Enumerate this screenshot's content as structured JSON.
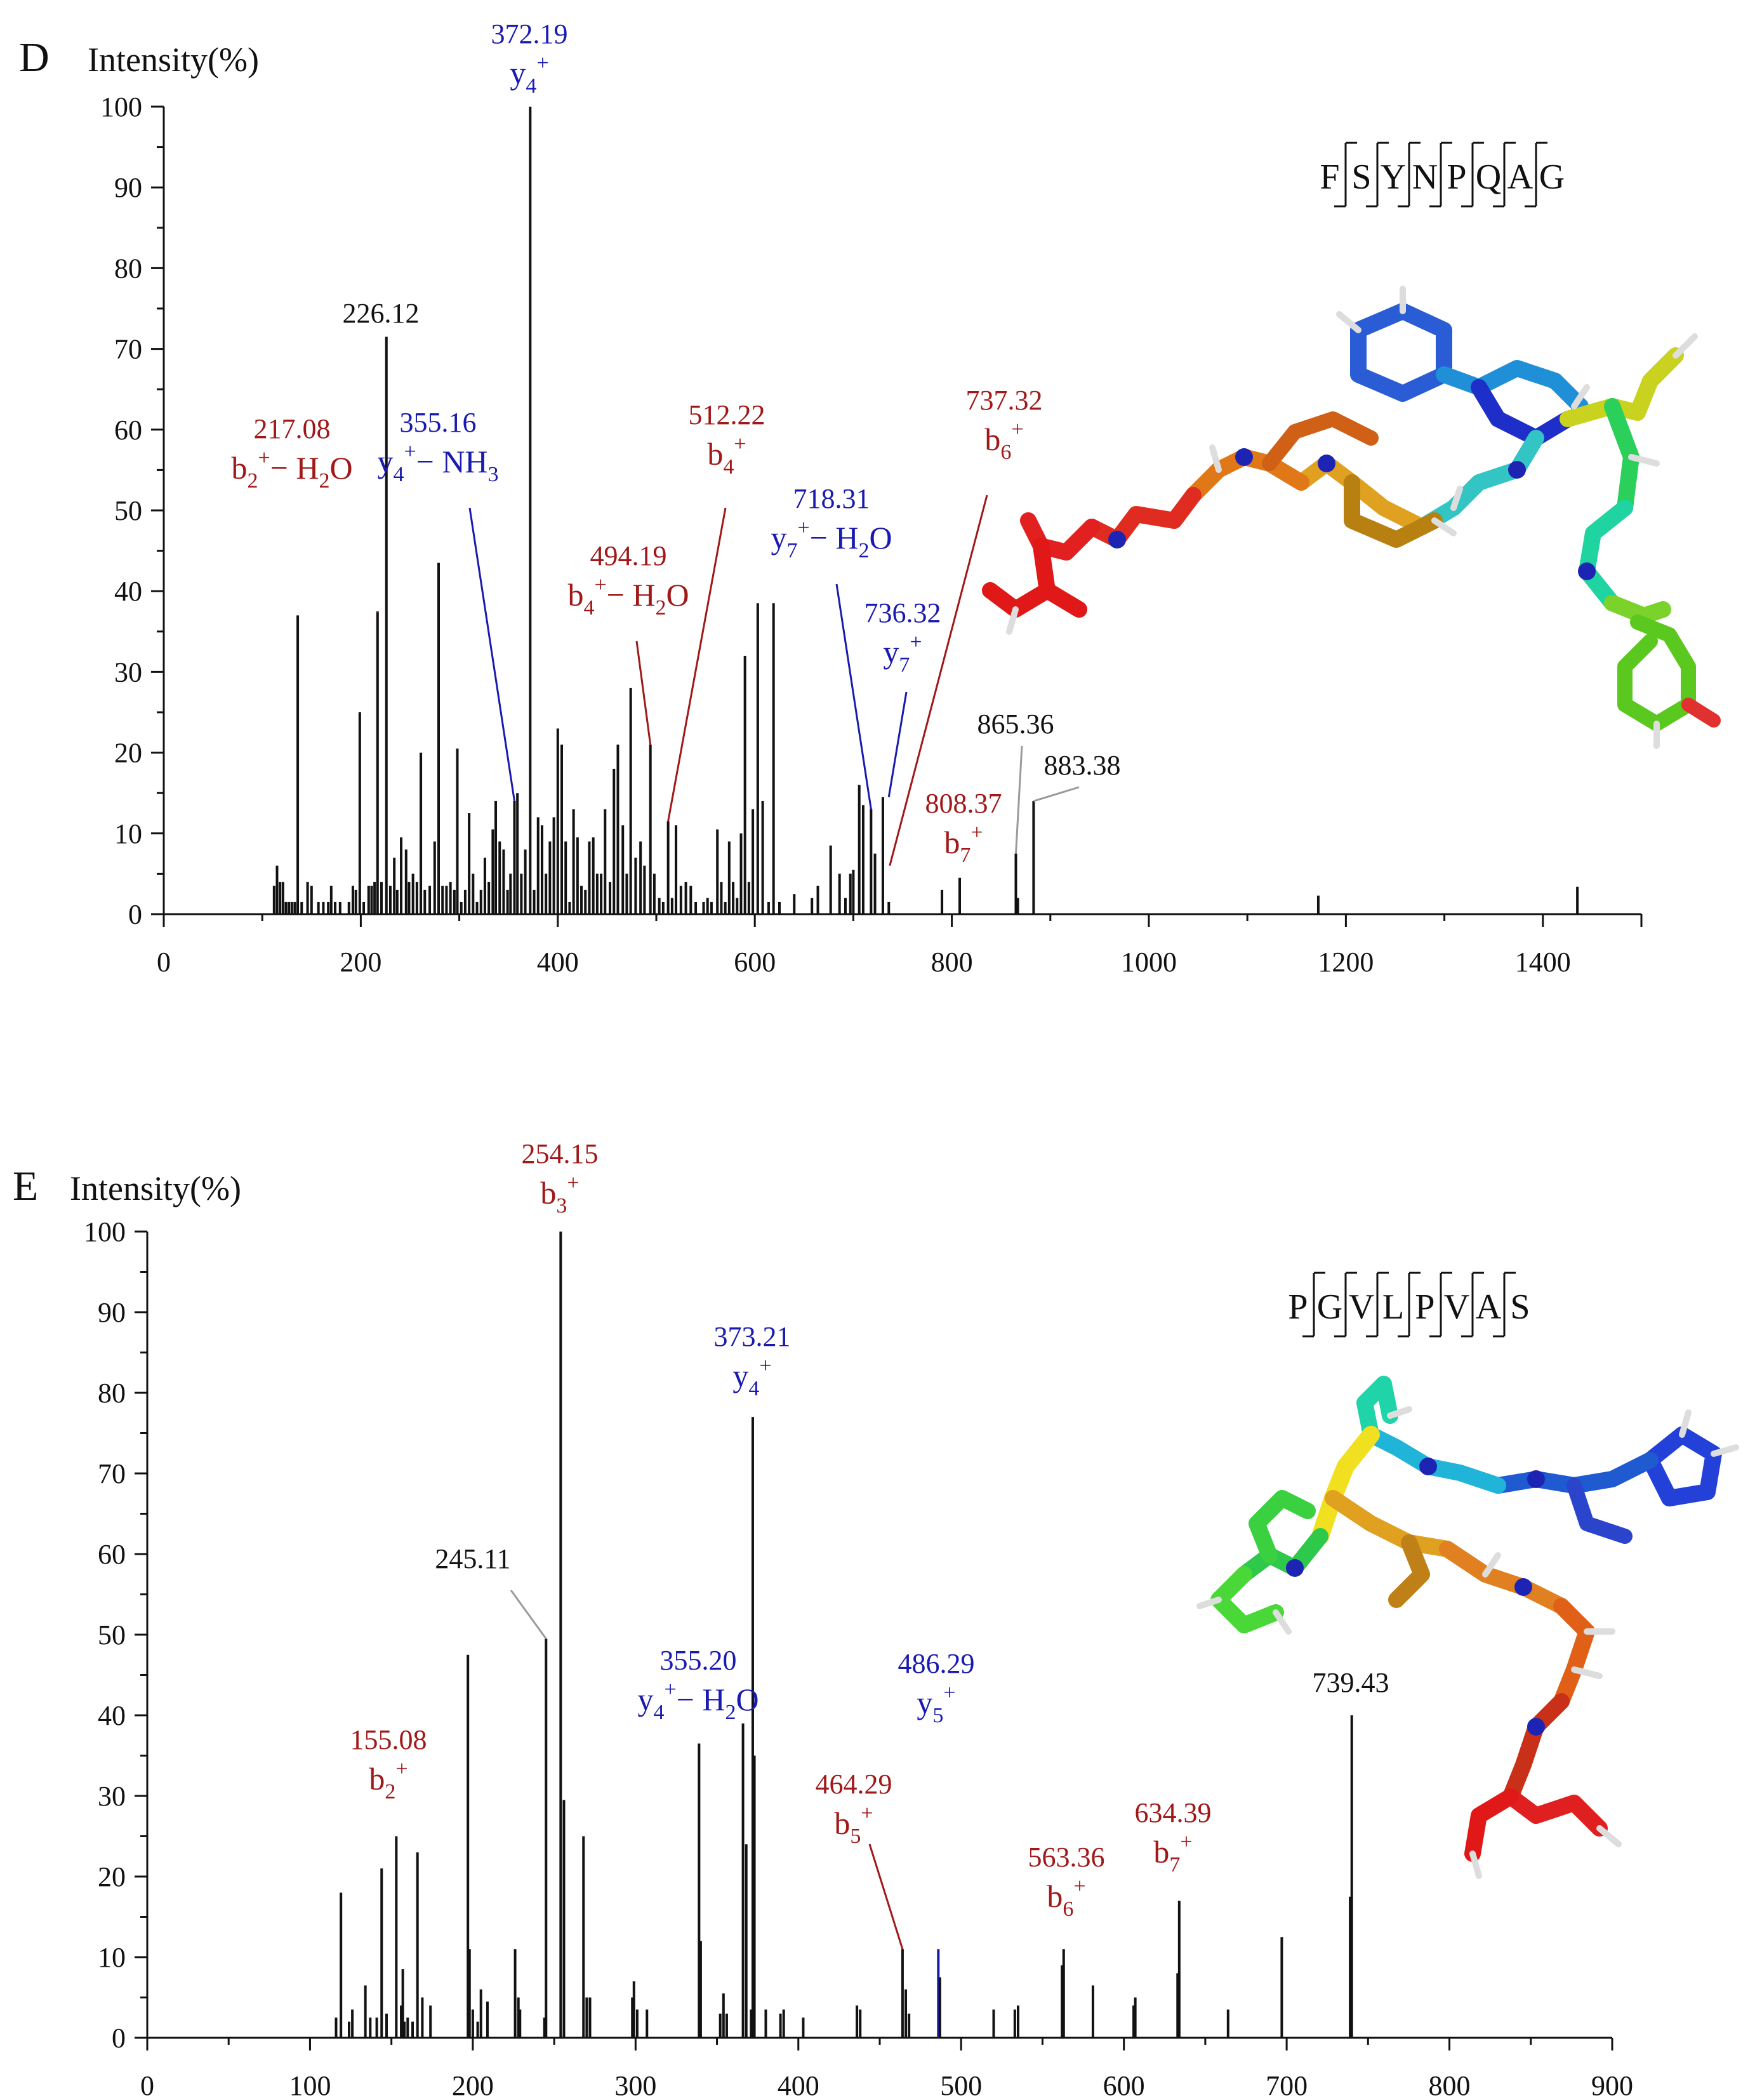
{
  "colors": {
    "black": "#111111",
    "b_ion": "#a01818",
    "y_ion": "#1a1ab0",
    "other": "#111111",
    "leader_grey": "#9a9a9a"
  },
  "chart_data": [
    {
      "type": "bar",
      "panel": "D",
      "ylabel": "Intensity(%)",
      "xlim": [
        0,
        1500
      ],
      "ylim": [
        0,
        100
      ],
      "xticks": [
        "0",
        "200",
        "400",
        "600",
        "800",
        "1000",
        "1200",
        "1400"
      ],
      "yticks": [
        "0",
        "10",
        "20",
        "30",
        "40",
        "50",
        "60",
        "70",
        "80",
        "90",
        "100"
      ],
      "sequence": [
        "F",
        "S",
        "Y",
        "N",
        "P",
        "Q",
        "A",
        "G"
      ],
      "peaks": [
        [
          112,
          3.5
        ],
        [
          115,
          6
        ],
        [
          118,
          4
        ],
        [
          121,
          4
        ],
        [
          124,
          1.5
        ],
        [
          127,
          1.5
        ],
        [
          130,
          1.5
        ],
        [
          133,
          1.5
        ],
        [
          136,
          37
        ],
        [
          140,
          1.5
        ],
        [
          146,
          4
        ],
        [
          150,
          3.5
        ],
        [
          157,
          1.5
        ],
        [
          162,
          1.5
        ],
        [
          167,
          1.5
        ],
        [
          170,
          3.5
        ],
        [
          174,
          1.5
        ],
        [
          179,
          1.5
        ],
        [
          188,
          1.5
        ],
        [
          192,
          3.5
        ],
        [
          195,
          3
        ],
        [
          199,
          25
        ],
        [
          203,
          1.5
        ],
        [
          208,
          3.5
        ],
        [
          211,
          3.5
        ],
        [
          214,
          4
        ],
        [
          217,
          37.5
        ],
        [
          221,
          4
        ],
        [
          226,
          71.5
        ],
        [
          230,
          3.5
        ],
        [
          234,
          7
        ],
        [
          237,
          3
        ],
        [
          241,
          9.5
        ],
        [
          246,
          8
        ],
        [
          249,
          4
        ],
        [
          253,
          5
        ],
        [
          257,
          4
        ],
        [
          261,
          20
        ],
        [
          265,
          3
        ],
        [
          270,
          3.5
        ],
        [
          275,
          9
        ],
        [
          279,
          43.5
        ],
        [
          283,
          3.5
        ],
        [
          287,
          3.5
        ],
        [
          291,
          4
        ],
        [
          295,
          3
        ],
        [
          298,
          20.5
        ],
        [
          302,
          1.5
        ],
        [
          306,
          3
        ],
        [
          310,
          12.5
        ],
        [
          314,
          5
        ],
        [
          318,
          1.5
        ],
        [
          322,
          3
        ],
        [
          326,
          7
        ],
        [
          330,
          4
        ],
        [
          334,
          10.5
        ],
        [
          337,
          14
        ],
        [
          341,
          9
        ],
        [
          345,
          8
        ],
        [
          349,
          3
        ],
        [
          352,
          5
        ],
        [
          356,
          14
        ],
        [
          359,
          15
        ],
        [
          363,
          5
        ],
        [
          367,
          8
        ],
        [
          372,
          100
        ],
        [
          376,
          3
        ],
        [
          380,
          12
        ],
        [
          384,
          11
        ],
        [
          388,
          5
        ],
        [
          392,
          9
        ],
        [
          396,
          12
        ],
        [
          400,
          23
        ],
        [
          404,
          21
        ],
        [
          408,
          9
        ],
        [
          412,
          1.5
        ],
        [
          416,
          13
        ],
        [
          420,
          9.5
        ],
        [
          424,
          3.5
        ],
        [
          428,
          3
        ],
        [
          432,
          9
        ],
        [
          436,
          9.5
        ],
        [
          440,
          5
        ],
        [
          444,
          5
        ],
        [
          448,
          13
        ],
        [
          453,
          4
        ],
        [
          457,
          18
        ],
        [
          461,
          21
        ],
        [
          466,
          11
        ],
        [
          470,
          5
        ],
        [
          474,
          28
        ],
        [
          479,
          7
        ],
        [
          484,
          9
        ],
        [
          488,
          6
        ],
        [
          494,
          21
        ],
        [
          498,
          5
        ],
        [
          503,
          2
        ],
        [
          507,
          1.5
        ],
        [
          512,
          11.5
        ],
        [
          516,
          2
        ],
        [
          520,
          11
        ],
        [
          525,
          3.5
        ],
        [
          530,
          4
        ],
        [
          535,
          3.5
        ],
        [
          540,
          1.5
        ],
        [
          548,
          1.5
        ],
        [
          552,
          2
        ],
        [
          556,
          1.5
        ],
        [
          562,
          10.5
        ],
        [
          566,
          4
        ],
        [
          570,
          1.5
        ],
        [
          574,
          9
        ],
        [
          578,
          4
        ],
        [
          582,
          2
        ],
        [
          586,
          10
        ],
        [
          590,
          32
        ],
        [
          594,
          4
        ],
        [
          598,
          13
        ],
        [
          603,
          38.5
        ],
        [
          608,
          14
        ],
        [
          614,
          1.5
        ],
        [
          619,
          38.5
        ],
        [
          625,
          1.5
        ],
        [
          640,
          2.5
        ],
        [
          658,
          2
        ],
        [
          664,
          3.5
        ],
        [
          677,
          8.5
        ],
        [
          686,
          5
        ],
        [
          692,
          2
        ],
        [
          697,
          5
        ],
        [
          700,
          5.5
        ],
        [
          706,
          16
        ],
        [
          710,
          13.5
        ],
        [
          718,
          13
        ],
        [
          722,
          7.5
        ],
        [
          730,
          14.5
        ],
        [
          736,
          1.5
        ],
        [
          790,
          3
        ],
        [
          808,
          4.5
        ],
        [
          865,
          7.5
        ],
        [
          867,
          2
        ],
        [
          883,
          14
        ],
        [
          1172,
          2.3
        ],
        [
          1435,
          3.4
        ]
      ],
      "annotations": [
        {
          "mz": 217,
          "y": 37.5,
          "num": "217.08",
          "ion": "b",
          "sub": "2",
          "sup": "+",
          "loss": "− H",
          "loss_sub": "2",
          "loss_tail": "O",
          "kind": "b"
        },
        {
          "mz": 226,
          "y": 71.5,
          "num": "226.12",
          "kind": "other"
        },
        {
          "mz": 356,
          "y": 14,
          "num": "355.16",
          "ion": "y",
          "sub": "4",
          "sup": "+",
          "loss": "− NH",
          "loss_sub": "3",
          "loss_tail": "",
          "kind": "y"
        },
        {
          "mz": 372,
          "y": 100,
          "num": "372.19",
          "ion": "y",
          "sub": "4",
          "sup": "+",
          "kind": "y"
        },
        {
          "mz": 494,
          "y": 21,
          "num": "494.19",
          "ion": "b",
          "sub": "4",
          "sup": "+",
          "loss": "− H",
          "loss_sub": "2",
          "loss_tail": "O",
          "kind": "b"
        },
        {
          "mz": 512,
          "y": 11.5,
          "num": "512.22",
          "ion": "b",
          "sub": "4",
          "sup": "+",
          "kind": "b"
        },
        {
          "mz": 718,
          "y": 13,
          "num": "718.31",
          "ion": "y",
          "sub": "7",
          "sup": "+",
          "loss": "− H",
          "loss_sub": "2",
          "loss_tail": "O",
          "kind": "y"
        },
        {
          "mz": 736,
          "y": 14.5,
          "num": "736.32",
          "ion": "y",
          "sub": "7",
          "sup": "+",
          "kind": "y"
        },
        {
          "mz": 737,
          "y": 6,
          "num": "737.32",
          "ion": "b",
          "sub": "6",
          "sup": "+",
          "kind": "b"
        },
        {
          "mz": 808,
          "y": 4.5,
          "num": "808.37",
          "ion": "b",
          "sub": "7",
          "sup": "+",
          "kind": "b"
        },
        {
          "mz": 865,
          "y": 7.5,
          "num": "865.36",
          "kind": "other"
        },
        {
          "mz": 883,
          "y": 14,
          "num": "883.38",
          "kind": "other"
        }
      ]
    },
    {
      "type": "bar",
      "panel": "E",
      "ylabel": "Intensity(%)",
      "xlim": [
        0,
        900
      ],
      "ylim": [
        0,
        100
      ],
      "xticks": [
        "0",
        "100",
        "200",
        "300",
        "400",
        "500",
        "600",
        "700",
        "800",
        "900"
      ],
      "yticks": [
        "0",
        "10",
        "20",
        "30",
        "40",
        "50",
        "60",
        "70",
        "80",
        "90",
        "100"
      ],
      "sequence": [
        "P",
        "G",
        "V",
        "L",
        "P",
        "V",
        "A",
        "S"
      ],
      "peaks": [
        [
          116,
          2.5
        ],
        [
          119,
          18
        ],
        [
          124,
          2
        ],
        [
          126,
          3.5
        ],
        [
          134,
          6.5
        ],
        [
          137,
          2.5
        ],
        [
          141,
          2.5
        ],
        [
          144,
          21
        ],
        [
          147,
          3
        ],
        [
          153,
          25
        ],
        [
          156,
          4
        ],
        [
          157,
          8.5
        ],
        [
          158,
          2
        ],
        [
          160,
          2.5
        ],
        [
          163,
          2
        ],
        [
          166,
          23
        ],
        [
          169,
          5
        ],
        [
          174,
          4
        ],
        [
          197,
          47.5
        ],
        [
          198,
          11
        ],
        [
          200,
          3.5
        ],
        [
          203,
          2
        ],
        [
          205,
          6
        ],
        [
          209,
          4.5
        ],
        [
          226,
          11
        ],
        [
          228,
          5
        ],
        [
          229,
          3.5
        ],
        [
          244,
          2.5
        ],
        [
          245,
          49.5
        ],
        [
          254,
          100
        ],
        [
          256,
          29.5
        ],
        [
          268,
          25
        ],
        [
          270,
          5
        ],
        [
          272,
          5
        ],
        [
          298,
          5
        ],
        [
          299,
          7
        ],
        [
          301,
          3.5
        ],
        [
          307,
          3.5
        ],
        [
          339,
          36.5
        ],
        [
          340,
          12
        ],
        [
          352,
          3
        ],
        [
          354,
          5.5
        ],
        [
          356,
          3
        ],
        [
          366,
          39
        ],
        [
          368,
          24
        ],
        [
          371,
          3.5
        ],
        [
          372,
          77
        ],
        [
          373,
          35
        ],
        [
          380,
          3.5
        ],
        [
          389,
          3
        ],
        [
          391,
          3.5
        ],
        [
          403,
          2.5
        ],
        [
          436,
          4
        ],
        [
          438,
          3.5
        ],
        [
          464,
          11
        ],
        [
          466,
          6
        ],
        [
          468,
          3
        ],
        [
          486,
          11
        ],
        [
          487,
          7.5
        ],
        [
          520,
          3.5
        ],
        [
          533,
          3.5
        ],
        [
          535,
          4
        ],
        [
          562,
          9
        ],
        [
          563,
          11
        ],
        [
          581,
          6.5
        ],
        [
          606,
          4
        ],
        [
          607,
          5
        ],
        [
          633,
          8
        ],
        [
          634,
          17
        ],
        [
          664,
          3.5
        ],
        [
          697,
          12.5
        ],
        [
          739,
          17.5
        ],
        [
          740,
          40
        ]
      ],
      "annotations": [
        {
          "mz": 155,
          "y": 25,
          "num": "155.08",
          "ion": "b",
          "sub": "2",
          "sup": "+",
          "kind": "b"
        },
        {
          "mz": 245,
          "y": 49.5,
          "num": "245.11",
          "kind": "other"
        },
        {
          "mz": 254,
          "y": 100,
          "num": "254.15",
          "ion": "b",
          "sub": "3",
          "sup": "+",
          "kind": "b"
        },
        {
          "mz": 355,
          "y": 5.5,
          "num": "355.20",
          "ion": "y",
          "sub": "4",
          "sup": "+",
          "loss": "− H",
          "loss_sub": "2",
          "loss_tail": "O",
          "kind": "y"
        },
        {
          "mz": 372,
          "y": 77,
          "num": "373.21",
          "ion": "y",
          "sub": "4",
          "sup": "+",
          "kind": "y"
        },
        {
          "mz": 464,
          "y": 11,
          "num": "464.29",
          "ion": "b",
          "sub": "5",
          "sup": "+",
          "kind": "b"
        },
        {
          "mz": 486,
          "y": 11,
          "num": "486.29",
          "ion": "y",
          "sub": "5",
          "sup": "+",
          "kind": "y"
        },
        {
          "mz": 563,
          "y": 11,
          "num": "563.36",
          "ion": "b",
          "sub": "6",
          "sup": "+",
          "kind": "b"
        },
        {
          "mz": 634,
          "y": 17,
          "num": "634.39",
          "ion": "b",
          "sub": "7",
          "sup": "+",
          "kind": "b"
        },
        {
          "mz": 740,
          "y": 40,
          "num": "739.43",
          "kind": "other"
        }
      ]
    }
  ]
}
